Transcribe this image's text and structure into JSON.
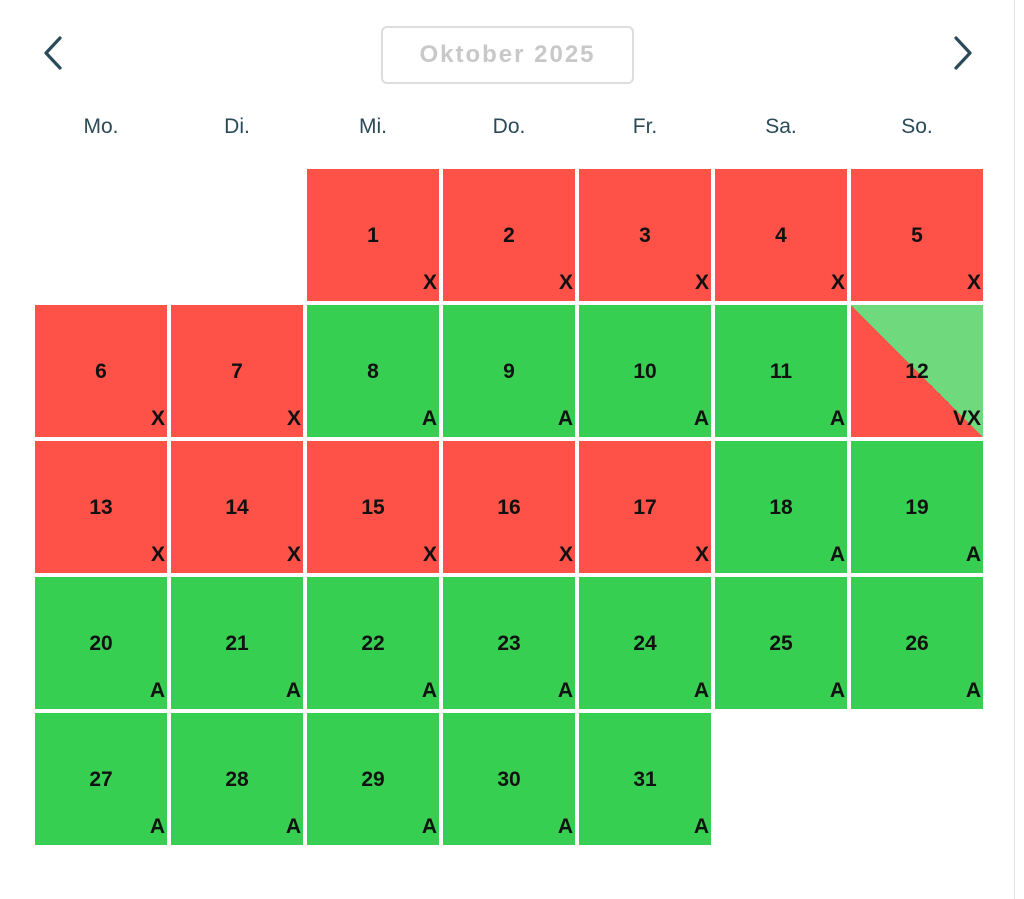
{
  "header": {
    "month_label": "Oktober 2025",
    "prev_icon": "chevron-left-icon",
    "next_icon": "chevron-right-icon"
  },
  "weekdays": [
    "Mo.",
    "Di.",
    "Mi.",
    "Do.",
    "Fr.",
    "Sa.",
    "So."
  ],
  "calendar": {
    "first_weekday_offset": 2,
    "colors": {
      "occupied": "#fe5148",
      "available": "#37cf51",
      "available_light": "#6ed97d"
    },
    "days": [
      {
        "day": "1",
        "code": "X",
        "status": "occupied"
      },
      {
        "day": "2",
        "code": "X",
        "status": "occupied"
      },
      {
        "day": "3",
        "code": "X",
        "status": "occupied"
      },
      {
        "day": "4",
        "code": "X",
        "status": "occupied"
      },
      {
        "day": "5",
        "code": "X",
        "status": "occupied"
      },
      {
        "day": "6",
        "code": "X",
        "status": "occupied"
      },
      {
        "day": "7",
        "code": "X",
        "status": "occupied"
      },
      {
        "day": "8",
        "code": "A",
        "status": "available"
      },
      {
        "day": "9",
        "code": "A",
        "status": "available"
      },
      {
        "day": "10",
        "code": "A",
        "status": "available"
      },
      {
        "day": "11",
        "code": "A",
        "status": "available"
      },
      {
        "day": "12",
        "code": "VX",
        "status": "split"
      },
      {
        "day": "13",
        "code": "X",
        "status": "occupied"
      },
      {
        "day": "14",
        "code": "X",
        "status": "occupied"
      },
      {
        "day": "15",
        "code": "X",
        "status": "occupied"
      },
      {
        "day": "16",
        "code": "X",
        "status": "occupied"
      },
      {
        "day": "17",
        "code": "X",
        "status": "occupied"
      },
      {
        "day": "18",
        "code": "A",
        "status": "available"
      },
      {
        "day": "19",
        "code": "A",
        "status": "available"
      },
      {
        "day": "20",
        "code": "A",
        "status": "available"
      },
      {
        "day": "21",
        "code": "A",
        "status": "available"
      },
      {
        "day": "22",
        "code": "A",
        "status": "available"
      },
      {
        "day": "23",
        "code": "A",
        "status": "available"
      },
      {
        "day": "24",
        "code": "A",
        "status": "available"
      },
      {
        "day": "25",
        "code": "A",
        "status": "available"
      },
      {
        "day": "26",
        "code": "A",
        "status": "available"
      },
      {
        "day": "27",
        "code": "A",
        "status": "available"
      },
      {
        "day": "28",
        "code": "A",
        "status": "available"
      },
      {
        "day": "29",
        "code": "A",
        "status": "available"
      },
      {
        "day": "30",
        "code": "A",
        "status": "available"
      },
      {
        "day": "31",
        "code": "A",
        "status": "available"
      }
    ]
  }
}
